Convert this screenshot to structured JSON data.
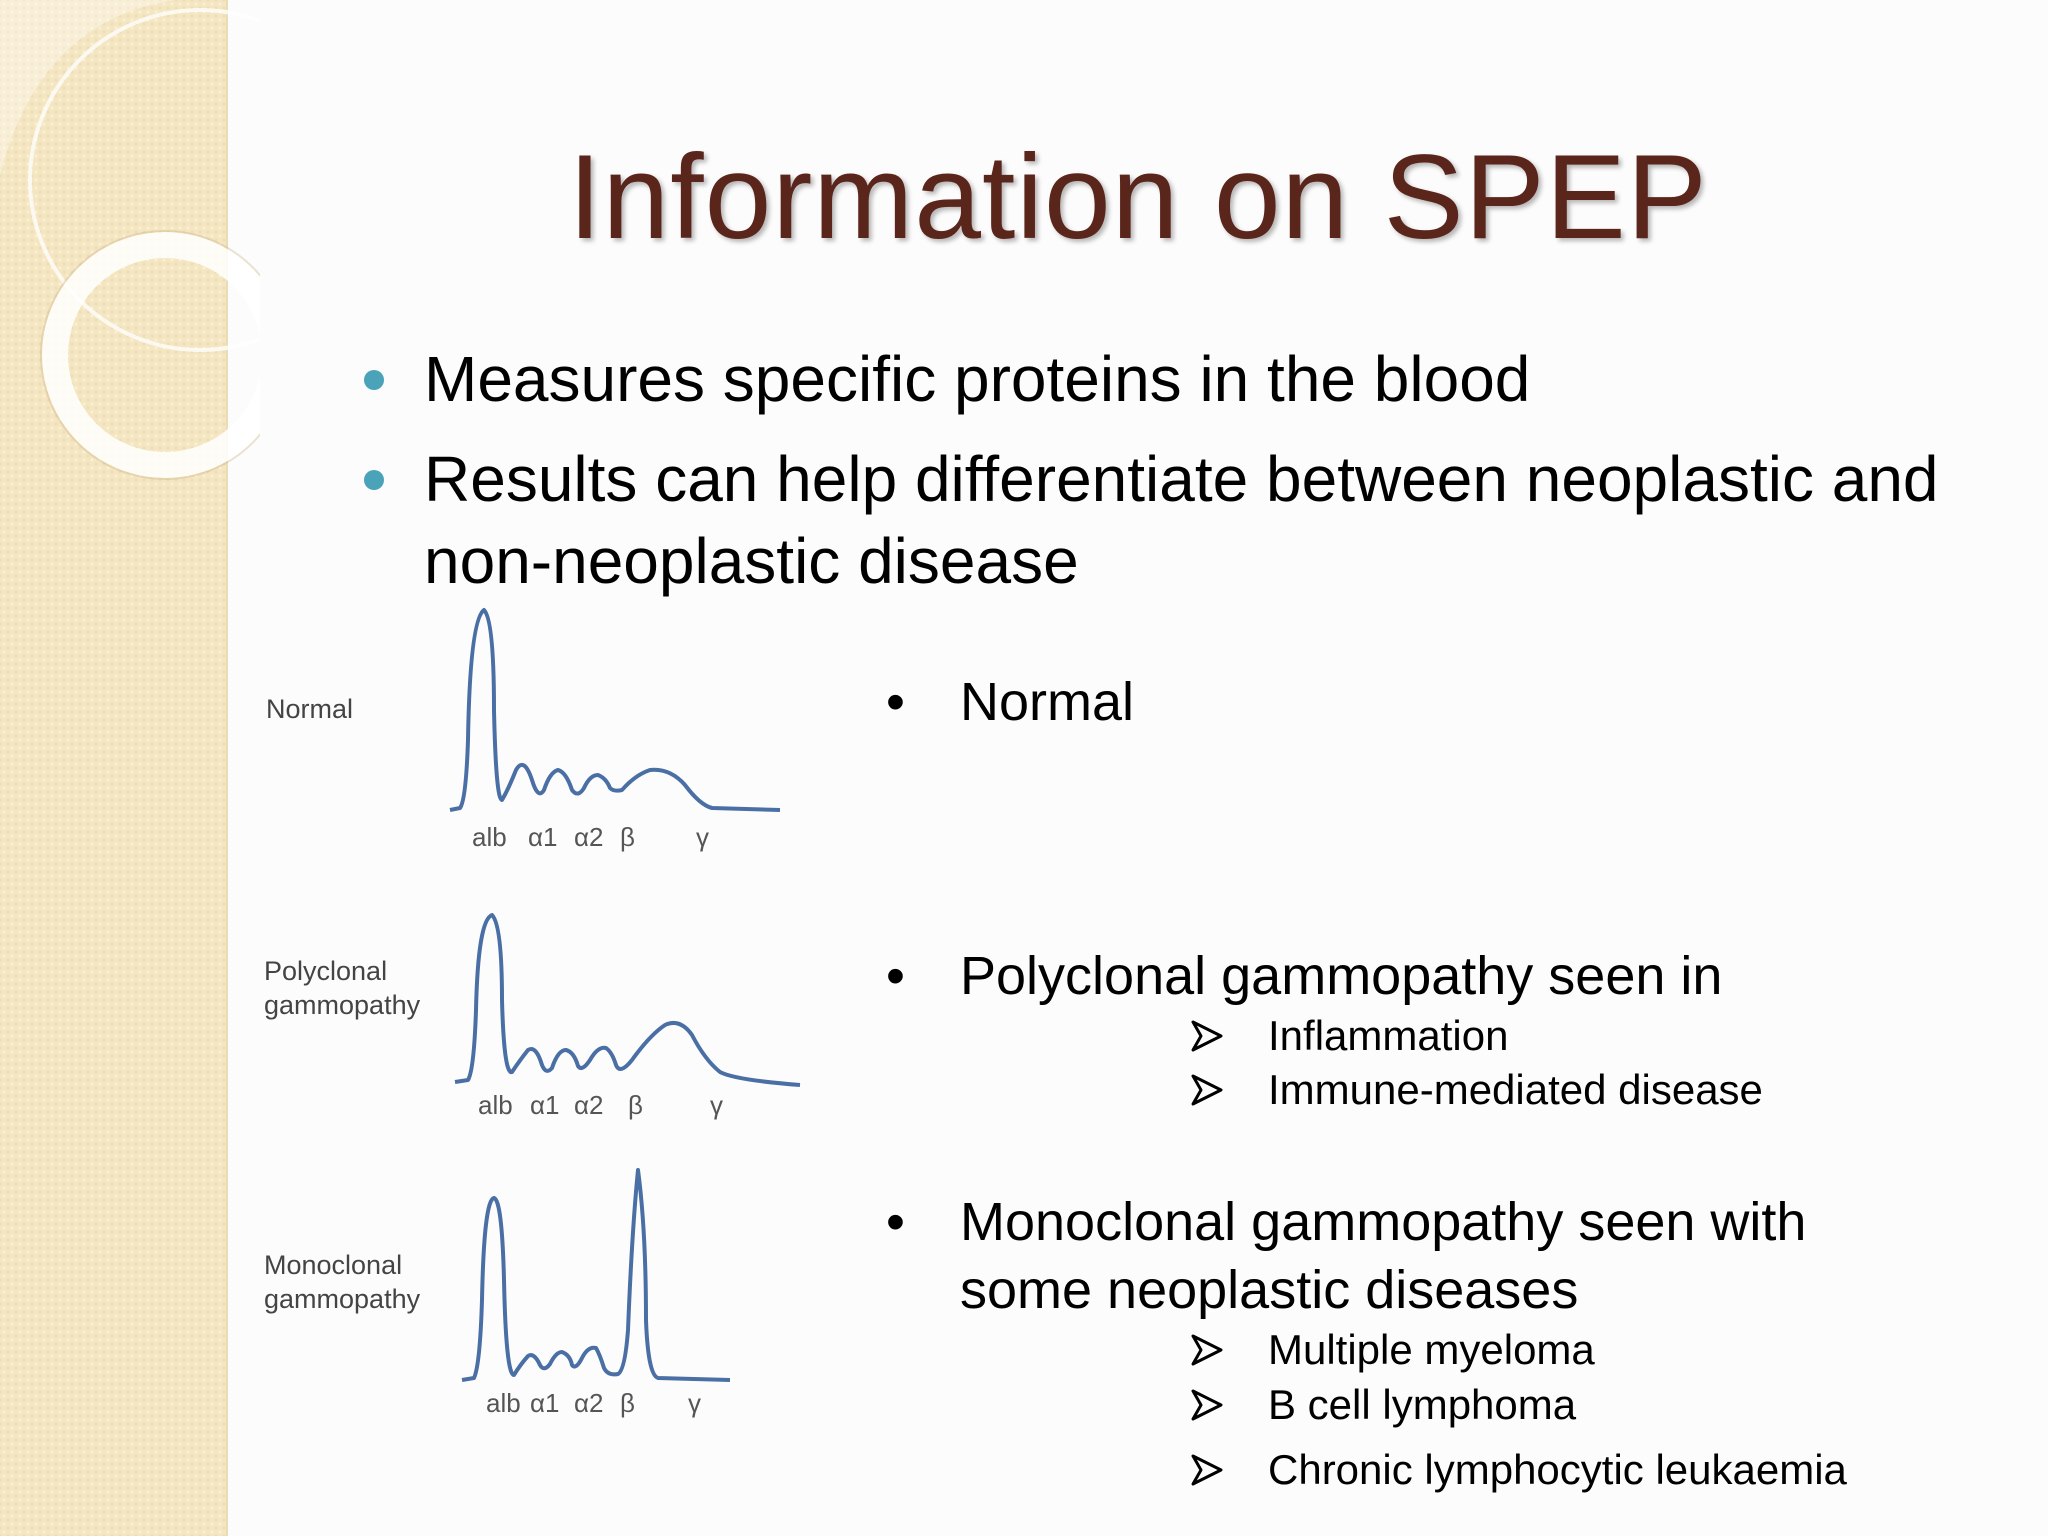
{
  "slide": {
    "title": "Information on SPEP",
    "bullets": [
      {
        "text": "Measures specific proteins in the blood"
      },
      {
        "text": "Results can help differentiate between neoplastic and non-neoplastic disease"
      }
    ],
    "graphs": [
      {
        "label": "Normal",
        "axis": [
          "alb",
          "α1",
          "α2",
          "β",
          "γ"
        ]
      },
      {
        "label": "Polyclonal\n  gammopathy",
        "axis": [
          "alb",
          "α1",
          "α2",
          "β",
          "γ"
        ]
      },
      {
        "label": "Monoclonal\n  gammopathy",
        "axis": [
          "alb",
          "α1",
          "α2",
          "β",
          "γ"
        ]
      }
    ],
    "side_bullets": [
      {
        "text": "Normal",
        "subs": []
      },
      {
        "text": "Polyclonal gammopathy seen in",
        "subs": [
          "Inflammation",
          "Immune-mediated disease"
        ]
      },
      {
        "text": "Monoclonal gammopathy seen with some neoplastic diseases",
        "subs": [
          "Multiple myeloma",
          "B cell lymphoma",
          "Chronic lymphocytic leukaemia"
        ]
      }
    ],
    "colors": {
      "title": "#5a261b",
      "bullet_dot": "#4aa3b8",
      "curve": "#4a6fa5",
      "band": "#f4e6c1"
    },
    "icons": {
      "main_bullet": "teal-dot",
      "side_bullet": "black-bullet",
      "sub_bullet": "arrowhead-icon"
    }
  }
}
